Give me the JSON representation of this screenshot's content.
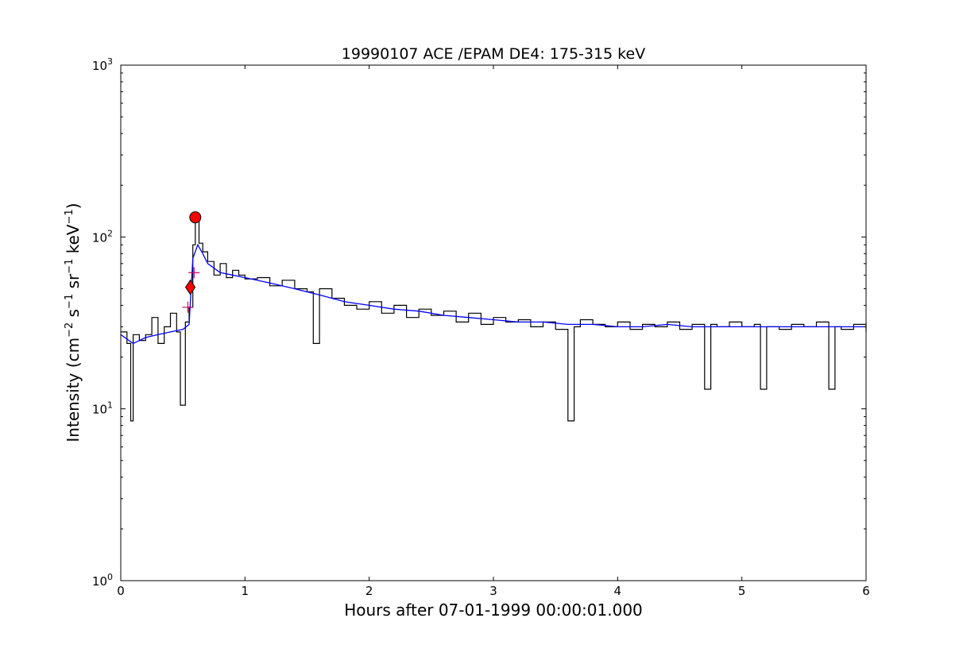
{
  "chart_data": {
    "type": "line",
    "title": "19990107 ACE /EPAM DE4: 175-315 keV",
    "xlabel": "Hours after 07-01-1999 00:00:01.000",
    "ylabel": {
      "prefix": "Intensity (cm",
      "exp1": "−2",
      "mid1": " s",
      "exp2": "−1",
      "mid2": " sr",
      "exp3": "−1",
      "mid3": " keV",
      "exp4": "−1",
      "suffix": ")"
    },
    "xlim": [
      0,
      6
    ],
    "ylim": [
      1,
      1000
    ],
    "yscale": "log",
    "x_ticks": [
      {
        "value": 0,
        "label": "0"
      },
      {
        "value": 1,
        "label": "1"
      },
      {
        "value": 2,
        "label": "2"
      },
      {
        "value": 3,
        "label": "3"
      },
      {
        "value": 4,
        "label": "4"
      },
      {
        "value": 5,
        "label": "5"
      },
      {
        "value": 6,
        "label": "6"
      }
    ],
    "y_ticks": [
      {
        "value": 1,
        "base": "10",
        "exp": "0"
      },
      {
        "value": 10,
        "base": "10",
        "exp": "1"
      },
      {
        "value": 100,
        "base": "10",
        "exp": "2"
      },
      {
        "value": 1000,
        "base": "10",
        "exp": "3"
      }
    ],
    "grid": false,
    "colors": {
      "raw": "#000000",
      "smoothed": "#0000ff",
      "marker_fill": "#ff0000",
      "cross": "#cc0066"
    },
    "series": [
      {
        "style": "steps",
        "color": "#000000",
        "points": [
          [
            0.0,
            28
          ],
          [
            0.05,
            24
          ],
          [
            0.08,
            8.5
          ],
          [
            0.1,
            27
          ],
          [
            0.15,
            25
          ],
          [
            0.2,
            27
          ],
          [
            0.25,
            34
          ],
          [
            0.3,
            24
          ],
          [
            0.35,
            30
          ],
          [
            0.4,
            36
          ],
          [
            0.45,
            28
          ],
          [
            0.48,
            10.5
          ],
          [
            0.52,
            32
          ],
          [
            0.55,
            39
          ],
          [
            0.58,
            90
          ],
          [
            0.6,
            130
          ],
          [
            0.63,
            92
          ],
          [
            0.66,
            82
          ],
          [
            0.7,
            72
          ],
          [
            0.75,
            60
          ],
          [
            0.8,
            70
          ],
          [
            0.85,
            58
          ],
          [
            0.9,
            64
          ],
          [
            0.95,
            60
          ],
          [
            1.0,
            57
          ],
          [
            1.1,
            58
          ],
          [
            1.2,
            52
          ],
          [
            1.3,
            56
          ],
          [
            1.4,
            50
          ],
          [
            1.5,
            48
          ],
          [
            1.55,
            24
          ],
          [
            1.6,
            50
          ],
          [
            1.7,
            44
          ],
          [
            1.8,
            40
          ],
          [
            1.9,
            38
          ],
          [
            2.0,
            42
          ],
          [
            2.1,
            36
          ],
          [
            2.2,
            40
          ],
          [
            2.3,
            34
          ],
          [
            2.4,
            38
          ],
          [
            2.5,
            35
          ],
          [
            2.6,
            37
          ],
          [
            2.7,
            32
          ],
          [
            2.8,
            36
          ],
          [
            2.9,
            31
          ],
          [
            3.0,
            34
          ],
          [
            3.1,
            32
          ],
          [
            3.2,
            33
          ],
          [
            3.3,
            30
          ],
          [
            3.4,
            32
          ],
          [
            3.5,
            29
          ],
          [
            3.6,
            8.5
          ],
          [
            3.65,
            30
          ],
          [
            3.7,
            33
          ],
          [
            3.8,
            31
          ],
          [
            3.9,
            30
          ],
          [
            4.0,
            32
          ],
          [
            4.1,
            29
          ],
          [
            4.2,
            31
          ],
          [
            4.3,
            30
          ],
          [
            4.4,
            32
          ],
          [
            4.5,
            29
          ],
          [
            4.6,
            31
          ],
          [
            4.7,
            13
          ],
          [
            4.75,
            31
          ],
          [
            4.8,
            30
          ],
          [
            4.9,
            32
          ],
          [
            5.0,
            30
          ],
          [
            5.1,
            31
          ],
          [
            5.15,
            13
          ],
          [
            5.2,
            30
          ],
          [
            5.3,
            29
          ],
          [
            5.4,
            31
          ],
          [
            5.5,
            30
          ],
          [
            5.6,
            32
          ],
          [
            5.7,
            13
          ],
          [
            5.75,
            30
          ],
          [
            5.8,
            29
          ],
          [
            5.9,
            31
          ],
          [
            6.0,
            28
          ]
        ]
      },
      {
        "style": "line",
        "color": "#0000ff",
        "points": [
          [
            0.0,
            27
          ],
          [
            0.1,
            24
          ],
          [
            0.2,
            26
          ],
          [
            0.3,
            27
          ],
          [
            0.4,
            28
          ],
          [
            0.5,
            29
          ],
          [
            0.55,
            31
          ],
          [
            0.58,
            75
          ],
          [
            0.62,
            90
          ],
          [
            0.66,
            80
          ],
          [
            0.7,
            70
          ],
          [
            0.8,
            62
          ],
          [
            0.9,
            60
          ],
          [
            1.0,
            58
          ],
          [
            1.2,
            54
          ],
          [
            1.4,
            50
          ],
          [
            1.6,
            46
          ],
          [
            1.8,
            42
          ],
          [
            2.0,
            40
          ],
          [
            2.2,
            38
          ],
          [
            2.4,
            37
          ],
          [
            2.6,
            35
          ],
          [
            2.8,
            34
          ],
          [
            3.0,
            33
          ],
          [
            3.2,
            32
          ],
          [
            3.4,
            32
          ],
          [
            3.6,
            31
          ],
          [
            3.8,
            31
          ],
          [
            4.0,
            30
          ],
          [
            4.2,
            30
          ],
          [
            4.4,
            31
          ],
          [
            4.6,
            30
          ],
          [
            4.8,
            30
          ],
          [
            5.0,
            30
          ],
          [
            5.2,
            30
          ],
          [
            5.4,
            30
          ],
          [
            5.6,
            30
          ],
          [
            5.8,
            30
          ],
          [
            6.0,
            30
          ]
        ]
      }
    ],
    "markers": [
      {
        "shape": "circle",
        "x": 0.6,
        "y": 130
      },
      {
        "shape": "diamond",
        "x": 0.56,
        "y": 51
      }
    ],
    "crosses": [
      {
        "x": 0.59,
        "y": 62
      },
      {
        "x": 0.54,
        "y": 39
      }
    ]
  }
}
